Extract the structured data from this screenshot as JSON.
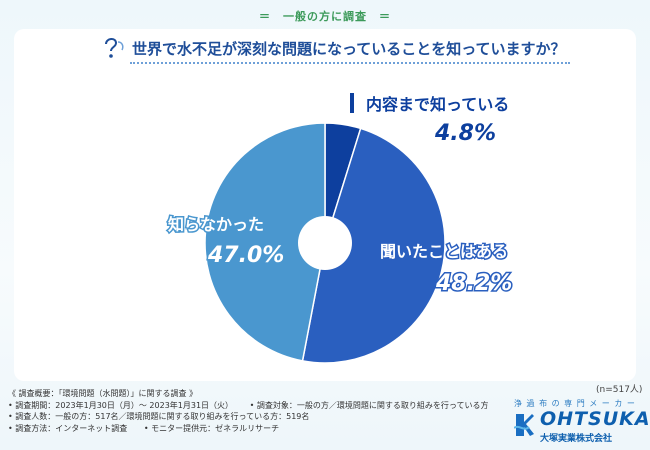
{
  "header": {
    "tag": "＝　一般の方に調査　＝"
  },
  "question": {
    "text": "世界で水不足が深刻な問題になっていることを知っていますか？"
  },
  "chart_data": {
    "type": "pie",
    "title": "世界で水不足が深刻な問題になっていることを知っていますか？",
    "slices": [
      {
        "label": "内容まで知っている",
        "value": 4.8,
        "display": "4.8%",
        "color": "#0d3f9e"
      },
      {
        "label": "聞いたことはある",
        "value": 48.2,
        "display": "48.2%",
        "color": "#2a5fbf"
      },
      {
        "label": "知らなかった",
        "value": 47.0,
        "display": "47.0%",
        "color": "#4a97cf"
      }
    ],
    "donut": true
  },
  "sample_note": "(n=517人)",
  "notes": {
    "heading": "《 調査概要：「環境問題（水問題）」に関する調査 》",
    "period": "• 調査期間：2023年1月30日（月）～ 2023年1月31日（火）",
    "target": "• 調査対象：一般の方／環境問題に関する取り組みを行っている方",
    "count": "• 調査人数：一般の方：517名／環境問題に関する取り組みを行っている方：519名",
    "method": "• 調査方法：インターネット調査",
    "monitor": "• モニター提供元：ゼネラルリサーチ"
  },
  "logo": {
    "tagline": "浄 過 布 の 専 門 メ ー カ ー",
    "brand": "OHTSUKA",
    "company": "大塚実業株式会社"
  }
}
